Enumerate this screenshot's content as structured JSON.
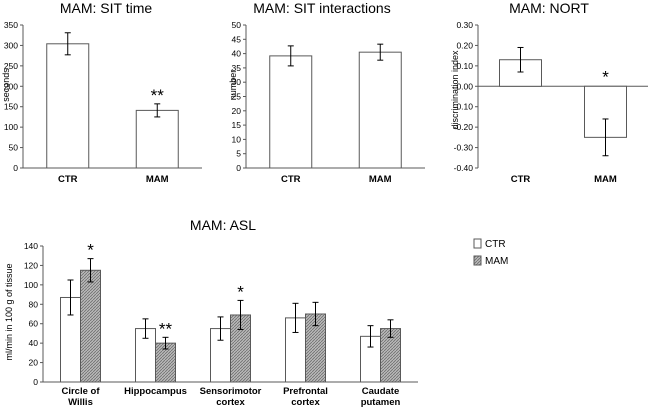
{
  "chart_data": [
    {
      "type": "bar",
      "title": "MAM: SIT time",
      "xlabel": "",
      "ylabel": "seconds",
      "ylim": [
        0,
        350
      ],
      "ticks": [
        0,
        50,
        100,
        150,
        200,
        250,
        300,
        350
      ],
      "categories": [
        "CTR",
        "MAM"
      ],
      "values": [
        304,
        141
      ],
      "errors": [
        27,
        16
      ],
      "annotations": [
        "",
        "**"
      ],
      "grid": false
    },
    {
      "type": "bar",
      "title": "MAM: SIT interactions",
      "xlabel": "",
      "ylabel": "number",
      "ylim": [
        0,
        50
      ],
      "ticks": [
        0,
        5,
        10,
        15,
        20,
        25,
        30,
        35,
        40,
        45,
        50
      ],
      "categories": [
        "CTR",
        "MAM"
      ],
      "values": [
        39.2,
        40.5
      ],
      "errors": [
        3.5,
        2.8
      ],
      "annotations": [
        "",
        ""
      ],
      "grid": false
    },
    {
      "type": "bar",
      "title": "MAM: NORT",
      "xlabel": "",
      "ylabel": "discrimination index",
      "ylim": [
        -0.4,
        0.3
      ],
      "ticks": [
        "-0.40",
        "-0.30",
        "-0.20",
        "-0.10",
        "0.00",
        "0.10",
        "0.20",
        "0.30"
      ],
      "categories": [
        "CTR",
        "MAM"
      ],
      "values": [
        0.13,
        -0.25
      ],
      "errors": [
        0.06,
        0.09
      ],
      "annotations": [
        "",
        "*"
      ],
      "grid": false
    },
    {
      "type": "bar",
      "title": "MAM: ASL",
      "xlabel": "",
      "ylabel": "ml/min in 100 g of tissue",
      "ylim": [
        0,
        140
      ],
      "ticks": [
        0,
        20,
        40,
        60,
        80,
        100,
        120,
        140
      ],
      "categories": [
        [
          "Circle of",
          "Willis"
        ],
        [
          "Hippocampus"
        ],
        [
          "Sensorimotor",
          "cortex"
        ],
        [
          "Prefrontal",
          "cortex"
        ],
        [
          "Caudate",
          "putamen"
        ]
      ],
      "series": [
        {
          "name": "CTR",
          "values": [
            87,
            55,
            55,
            66,
            47
          ],
          "errors": [
            18,
            10,
            12,
            15,
            11
          ],
          "annotations": [
            "",
            "",
            "",
            "",
            ""
          ]
        },
        {
          "name": "MAM",
          "values": [
            115,
            40,
            69,
            70,
            55
          ],
          "errors": [
            12,
            6,
            15,
            12,
            9
          ],
          "annotations": [
            "*",
            "**",
            "*",
            "",
            ""
          ]
        }
      ],
      "legend": "top-right",
      "grid": false
    }
  ]
}
